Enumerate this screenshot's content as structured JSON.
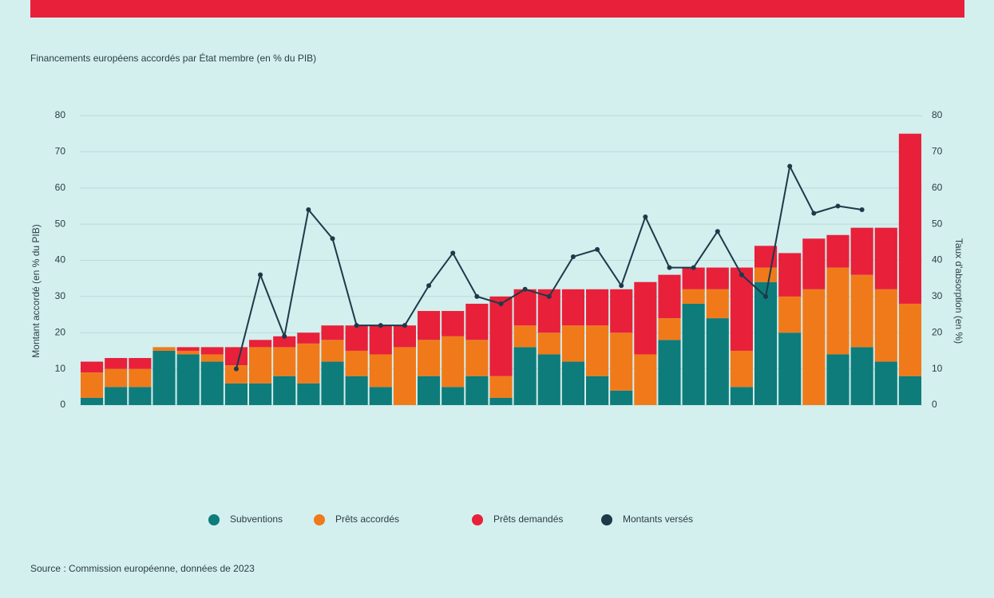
{
  "chart_data": {
    "type": "stacked-bar-line",
    "title": "Financements européens accordés par État membre (en % du PIB)",
    "y_label": "Montant accordé (en % du PIB)",
    "y2_label": "Taux d'absorption (en %)",
    "source": "Source : Commission européenne, données de 2023",
    "categories": [
      null,
      null,
      null,
      null,
      null,
      null,
      null,
      null,
      null,
      null,
      null,
      null,
      null,
      null,
      null,
      null,
      null,
      null,
      null,
      null,
      null,
      null,
      null,
      null,
      null,
      null,
      null,
      null,
      null,
      null,
      null,
      null,
      null,
      null,
      null
    ],
    "series": [
      {
        "name": "Subventions",
        "color": "#0e7c7b",
        "values": [
          2,
          5,
          5,
          15,
          14,
          12,
          6,
          6,
          8,
          6,
          12,
          8,
          5,
          0,
          8,
          5,
          8,
          2,
          16,
          14,
          12,
          8,
          4,
          0,
          18,
          28,
          24,
          5,
          34,
          20,
          0,
          14,
          16,
          12,
          8
        ]
      },
      {
        "name": "Prêts accordés",
        "color": "#f07a1a",
        "values": [
          7,
          5,
          5,
          1,
          1,
          2,
          5,
          10,
          8,
          11,
          6,
          7,
          9,
          16,
          10,
          14,
          10,
          6,
          6,
          6,
          10,
          14,
          16,
          14,
          6,
          4,
          8,
          10,
          4,
          10,
          32,
          24,
          20,
          20,
          20
        ]
      },
      {
        "name": "Prêts demandés",
        "color": "#e8203a",
        "values": [
          3,
          3,
          3,
          0,
          1,
          2,
          5,
          2,
          3,
          3,
          4,
          7,
          8,
          6,
          8,
          7,
          10,
          22,
          10,
          12,
          10,
          10,
          12,
          20,
          12,
          6,
          6,
          23,
          6,
          12,
          14,
          9,
          13,
          17,
          47
        ]
      },
      {
        "name": "Montants versés",
        "color": "#1d3a4a",
        "axis": "y2",
        "values": [
          null,
          null,
          null,
          null,
          null,
          null,
          10,
          36,
          19,
          54,
          46,
          22,
          22,
          22,
          33,
          42,
          30,
          28,
          32,
          30,
          41,
          43,
          33,
          52,
          38,
          38,
          48,
          36,
          30,
          66,
          53,
          55,
          54,
          null,
          null
        ]
      }
    ],
    "ylim": [
      0,
      80
    ],
    "yticks": [
      0,
      10,
      20,
      30,
      40,
      50,
      60,
      70,
      80
    ],
    "y2lim": [
      0,
      80
    ],
    "y2ticks": [
      0,
      10,
      20,
      30,
      40,
      50,
      60,
      70,
      80
    ],
    "grid": true
  }
}
